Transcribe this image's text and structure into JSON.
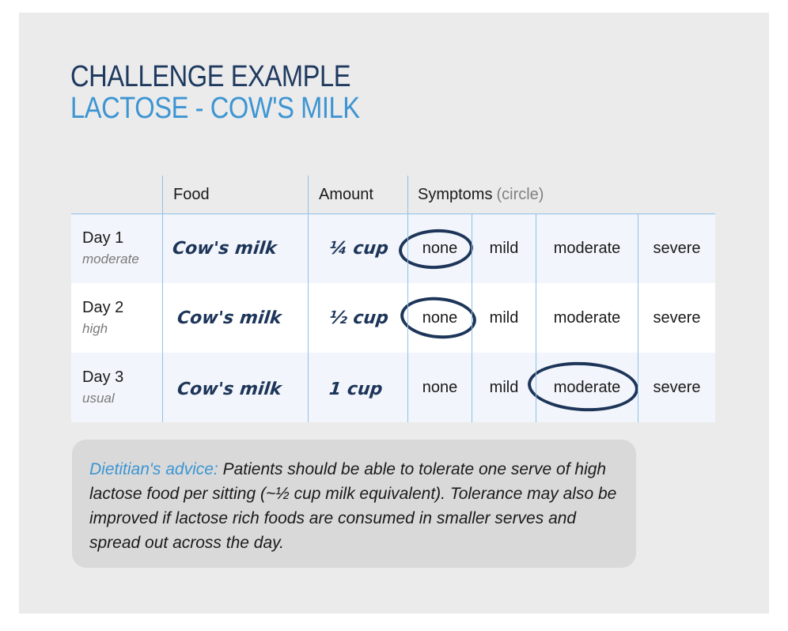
{
  "title": {
    "line1": "CHALLENGE EXAMPLE",
    "line2": "LACTOSE - COW'S MILK"
  },
  "table": {
    "headers": {
      "food": "Food",
      "amount": "Amount",
      "symptoms": "Symptoms",
      "symptoms_note": "(circle)"
    },
    "symptom_options": [
      "none",
      "mild",
      "moderate",
      "severe"
    ],
    "rows": [
      {
        "day": "Day 1",
        "level": "moderate",
        "food": "Cow's milk",
        "amount": "¼ cup",
        "circled": "none"
      },
      {
        "day": "Day 2",
        "level": "high",
        "food": "Cow's milk",
        "amount": "½ cup",
        "circled": "none"
      },
      {
        "day": "Day 3",
        "level": "usual",
        "food": "Cow's milk",
        "amount": "1 cup",
        "circled": "moderate"
      }
    ]
  },
  "advice": {
    "label": "Dietitian's advice:",
    "text": "Patients should be able to tolerate one serve of high lactose food per sitting (~½ cup milk equivalent). Tolerance may also be improved if lactose rich foods are consumed in smaller serves and spread out across the day."
  },
  "colors": {
    "title_dark": "#1f3a5f",
    "title_accent": "#3d95d2",
    "ink": "#1d3559",
    "grid": "#8fc1e6"
  }
}
